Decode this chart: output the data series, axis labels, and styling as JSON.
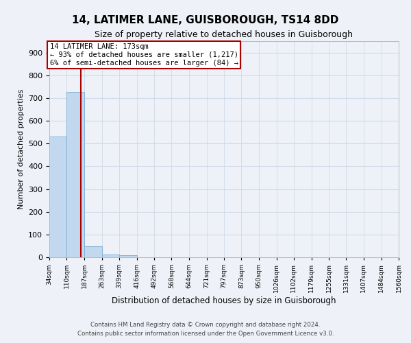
{
  "title": "14, LATIMER LANE, GUISBOROUGH, TS14 8DD",
  "subtitle": "Size of property relative to detached houses in Guisborough",
  "xlabel": "Distribution of detached houses by size in Guisborough",
  "ylabel": "Number of detached properties",
  "bin_edges": [
    34,
    110,
    187,
    263,
    339,
    416,
    492,
    568,
    644,
    721,
    797,
    873,
    950,
    1026,
    1102,
    1179,
    1255,
    1331,
    1407,
    1484,
    1560
  ],
  "bar_heights": [
    530,
    727,
    47,
    12,
    8,
    0,
    0,
    0,
    0,
    0,
    0,
    0,
    0,
    0,
    0,
    0,
    0,
    0,
    0,
    0
  ],
  "bar_color": "#c2d8ef",
  "bar_edge_color": "#7aadd4",
  "grid_color": "#d0d9e8",
  "background_color": "#eef2f8",
  "property_sqm": 173,
  "red_line_color": "#aa0000",
  "annotation_line1": "14 LATIMER LANE: 173sqm",
  "annotation_line2": "← 93% of detached houses are smaller (1,217)",
  "annotation_line3": "6% of semi-detached houses are larger (84) →",
  "annotation_box_color": "#aa0000",
  "annotation_bg": "#ffffff",
  "yticks": [
    0,
    100,
    200,
    300,
    400,
    500,
    600,
    700,
    800,
    900
  ],
  "ylim": [
    0,
    950
  ],
  "footnote1": "Contains HM Land Registry data © Crown copyright and database right 2024.",
  "footnote2": "Contains public sector information licensed under the Open Government Licence v3.0."
}
